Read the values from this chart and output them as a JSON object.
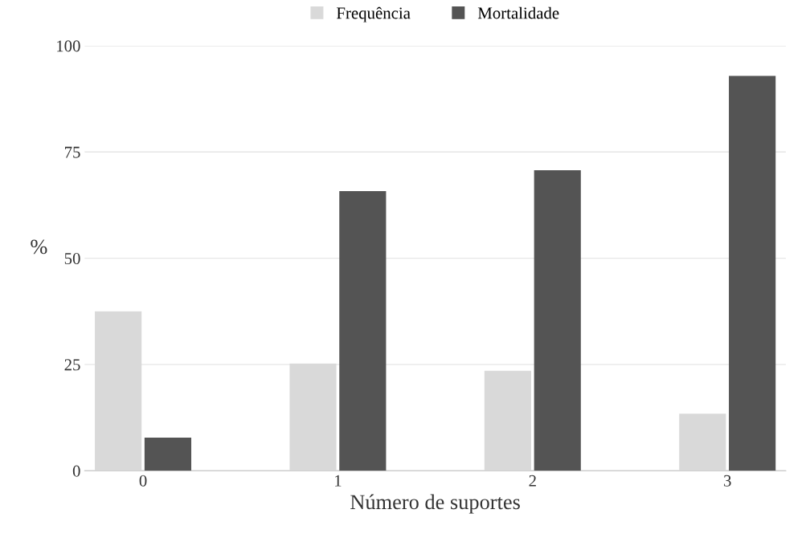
{
  "chart_data": {
    "type": "bar",
    "xlabel": "Número de suportes",
    "ylabel": "%",
    "categories": [
      "0",
      "1",
      "2",
      "3"
    ],
    "series": [
      {
        "name": "Frequência",
        "color": "#d9d9d9",
        "values": [
          37.5,
          25.2,
          23.5,
          13.4
        ]
      },
      {
        "name": "Mortalidade",
        "color": "#545454",
        "values": [
          7.8,
          65.8,
          70.7,
          92.9
        ]
      }
    ],
    "ylim": [
      0,
      100
    ],
    "yticks": [
      0,
      25,
      50,
      75,
      100
    ],
    "grid": "y",
    "legend": "top"
  }
}
